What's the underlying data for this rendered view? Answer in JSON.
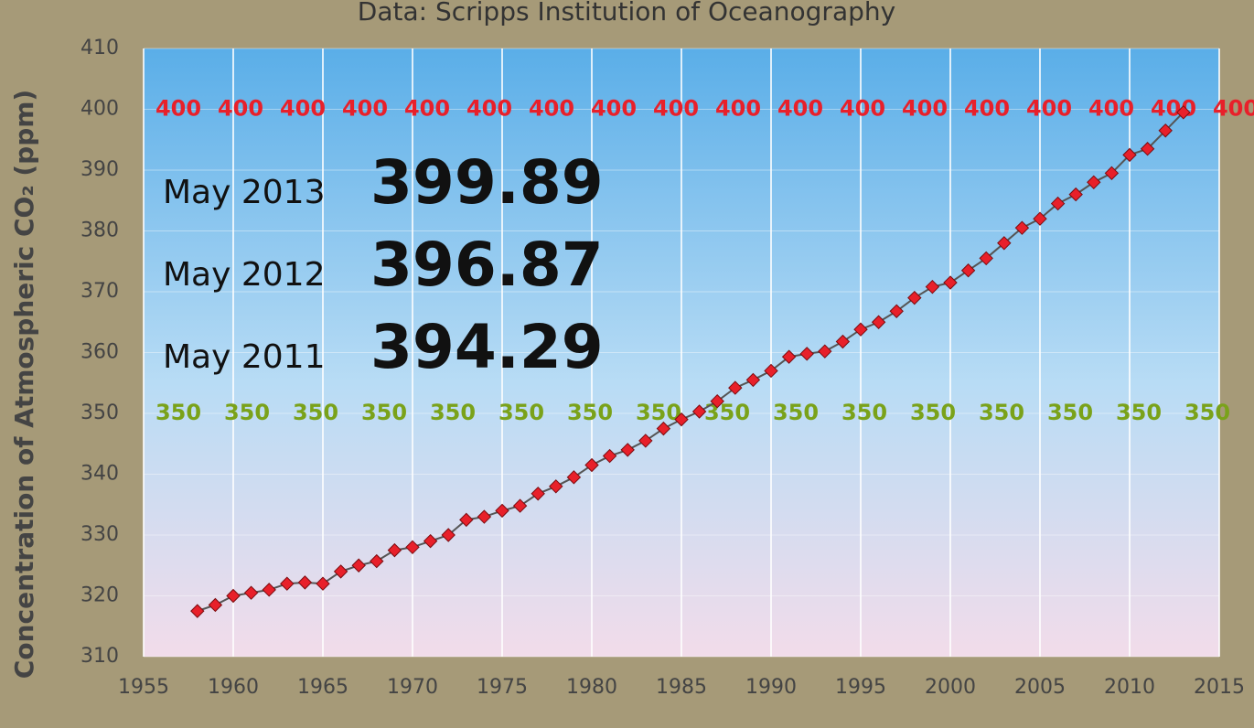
{
  "chart_data": {
    "type": "line",
    "title": "Data:  Scripps Institution of Oceanography",
    "y_label": "Concentration of Atmospheric CO₂ (ppm)",
    "x": [
      1958,
      1959,
      1960,
      1961,
      1962,
      1963,
      1964,
      1965,
      1966,
      1967,
      1968,
      1969,
      1970,
      1971,
      1972,
      1973,
      1974,
      1975,
      1976,
      1977,
      1978,
      1979,
      1980,
      1981,
      1982,
      1983,
      1984,
      1985,
      1986,
      1987,
      1988,
      1989,
      1990,
      1991,
      1992,
      1993,
      1994,
      1995,
      1996,
      1997,
      1998,
      1999,
      2000,
      2001,
      2002,
      2003,
      2004,
      2005,
      2006,
      2007,
      2008,
      2009,
      2010,
      2011,
      2012,
      2013
    ],
    "series": [
      {
        "name": "CO2",
        "color": "#e8202a",
        "values": [
          317.5,
          318.5,
          320,
          320.5,
          321,
          322,
          322.2,
          322,
          324,
          325,
          325.7,
          327.5,
          328,
          329,
          330,
          332.5,
          333,
          334,
          334.8,
          336.8,
          338,
          339.5,
          341.5,
          343,
          344,
          345.5,
          347.5,
          349,
          350.3,
          352,
          354.2,
          355.5,
          357,
          359.3,
          359.8,
          360.2,
          361.8,
          363.8,
          365,
          366.8,
          369,
          370.8,
          371.5,
          373.5,
          375.5,
          378,
          380.5,
          382,
          384.5,
          386,
          388,
          389.5,
          392.5,
          393.5,
          396.5,
          399.5
        ]
      }
    ],
    "xlim": [
      1955,
      2015
    ],
    "xticks": [
      1955,
      1960,
      1965,
      1970,
      1975,
      1980,
      1985,
      1990,
      1995,
      2000,
      2005,
      2010,
      2015
    ],
    "ylim": [
      310,
      410
    ],
    "yticks": [
      310,
      320,
      330,
      340,
      350,
      360,
      370,
      380,
      390,
      400,
      410
    ],
    "grid": true,
    "annotations": [
      {
        "label": "May 2013",
        "value": "399.89"
      },
      {
        "label": "May 2012",
        "value": "396.87"
      },
      {
        "label": "May 2011",
        "value": "394.29"
      }
    ],
    "upper_marks": {
      "color": "#e8202a",
      "values": [
        400,
        400,
        400,
        400,
        400,
        400,
        400,
        400,
        400,
        400,
        400,
        400,
        400,
        400,
        400,
        400,
        400,
        400
      ]
    },
    "lower_marks": {
      "color": "#7aa21a",
      "values": [
        350,
        350,
        350,
        350,
        350,
        350,
        350,
        350,
        350,
        350,
        350,
        350,
        350,
        350,
        350,
        350
      ]
    }
  }
}
